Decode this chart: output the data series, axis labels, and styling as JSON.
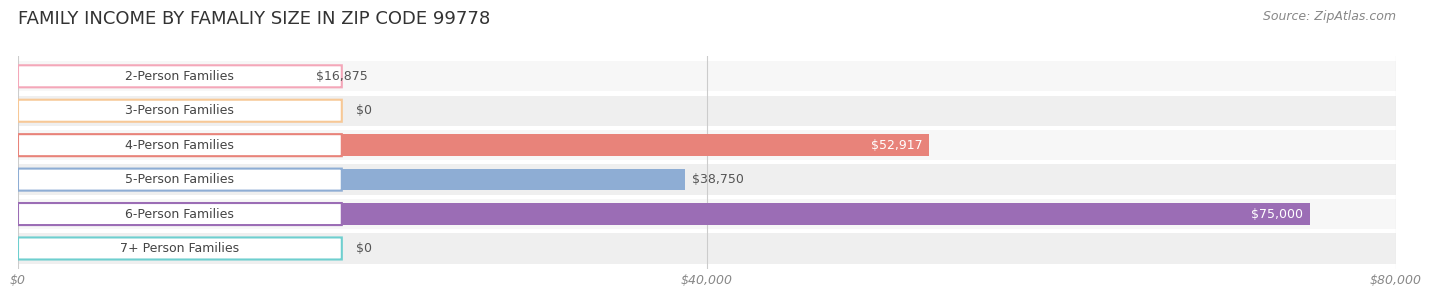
{
  "title": "FAMILY INCOME BY FAMALIY SIZE IN ZIP CODE 99778",
  "source": "Source: ZipAtlas.com",
  "categories": [
    "2-Person Families",
    "3-Person Families",
    "4-Person Families",
    "5-Person Families",
    "6-Person Families",
    "7+ Person Families"
  ],
  "values": [
    16875,
    0,
    52917,
    38750,
    75000,
    0
  ],
  "bar_colors": [
    "#f4a7b9",
    "#f7c896",
    "#e8837a",
    "#8eadd4",
    "#9b6db5",
    "#6ecfcf"
  ],
  "bar_bg_color": "#f0f0f0",
  "value_labels": [
    "$16,875",
    "$0",
    "$52,917",
    "$38,750",
    "$75,000",
    "$0"
  ],
  "xlim": [
    0,
    80000
  ],
  "xtick_values": [
    0,
    40000,
    80000
  ],
  "xtick_labels": [
    "$0",
    "$40,000",
    "$80,000"
  ],
  "background_color": "#ffffff",
  "row_bg_colors": [
    "#fafafa",
    "#f5f5f5"
  ],
  "title_fontsize": 13,
  "label_fontsize": 9,
  "value_fontsize": 9,
  "source_fontsize": 9
}
